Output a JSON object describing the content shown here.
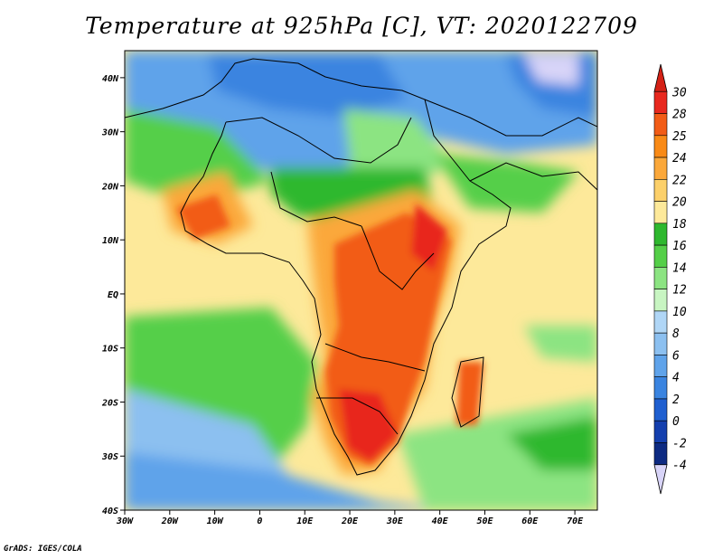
{
  "title": "Temperature at 925hPa [C], VT: 2020122709",
  "credit": "GrADS: IGES/COLA",
  "map": {
    "lon_range": [
      -30,
      75
    ],
    "lat_range": [
      -40,
      45
    ],
    "lat_ticks": [
      {
        "lat": 40,
        "label": "40N"
      },
      {
        "lat": 30,
        "label": "30N"
      },
      {
        "lat": 20,
        "label": "20N"
      },
      {
        "lat": 10,
        "label": "10N"
      },
      {
        "lat": 0,
        "label": "EQ"
      },
      {
        "lat": -10,
        "label": "10S"
      },
      {
        "lat": -20,
        "label": "20S"
      },
      {
        "lat": -30,
        "label": "30S"
      },
      {
        "lat": -40,
        "label": "40S"
      }
    ],
    "lon_ticks": [
      {
        "lon": -30,
        "label": "30W"
      },
      {
        "lon": -20,
        "label": "20W"
      },
      {
        "lon": -10,
        "label": "10W"
      },
      {
        "lon": 0,
        "label": "0"
      },
      {
        "lon": 10,
        "label": "10E"
      },
      {
        "lon": 20,
        "label": "20E"
      },
      {
        "lon": 30,
        "label": "30E"
      },
      {
        "lon": 40,
        "label": "40E"
      },
      {
        "lon": 50,
        "label": "50E"
      },
      {
        "lon": 60,
        "label": "60E"
      },
      {
        "lon": 70,
        "label": "70E"
      }
    ]
  },
  "colorbar": {
    "levels": [
      {
        "label": "30",
        "color": "#e8281e"
      },
      {
        "label": "28",
        "color": "#f25c16"
      },
      {
        "label": "25",
        "color": "#f98a16"
      },
      {
        "label": "24",
        "color": "#fba83a"
      },
      {
        "label": "22",
        "color": "#fcd06a"
      },
      {
        "label": "20",
        "color": "#fde99a"
      },
      {
        "label": "18",
        "color": "#2eb82e"
      },
      {
        "label": "16",
        "color": "#54cf48"
      },
      {
        "label": "14",
        "color": "#8ce482"
      },
      {
        "label": "12",
        "color": "#c8f5c2"
      },
      {
        "label": "10",
        "color": "#b0d6f6"
      },
      {
        "label": "8",
        "color": "#8cc0f0"
      },
      {
        "label": "6",
        "color": "#5fa3ea"
      },
      {
        "label": "4",
        "color": "#3a84e0"
      },
      {
        "label": "2",
        "color": "#1f5fd0"
      },
      {
        "label": "0",
        "color": "#143fae"
      },
      {
        "label": "-2",
        "color": "#0d2a82"
      },
      {
        "label": "-4",
        "color": "#0a1d5c"
      }
    ],
    "top_color": "#d42116",
    "bottom_color": "#d8d4f8"
  }
}
